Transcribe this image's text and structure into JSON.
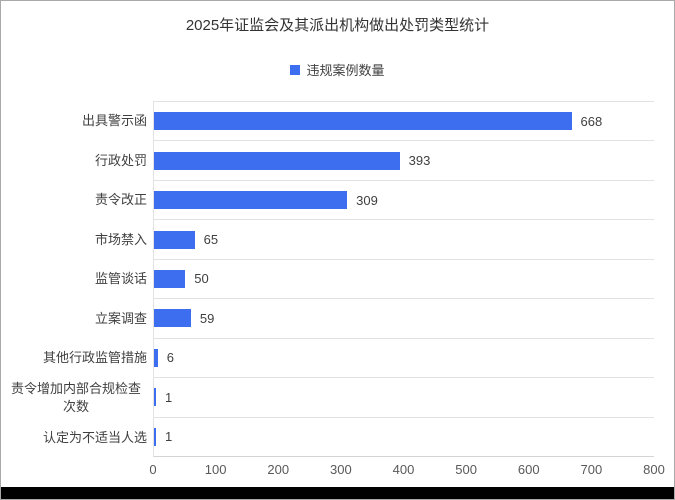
{
  "chart_data": {
    "type": "bar",
    "orientation": "horizontal",
    "title": "2025年证监会及其派出机构做出处罚类型统计",
    "series_name": "违规案例数量",
    "categories": [
      "出具警示函",
      "行政处罚",
      "责令改正",
      "市场禁入",
      "监管谈话",
      "立案调查",
      "其他行政监管措施",
      "责令增加内部合规检查次数",
      "认定为不适当人选"
    ],
    "values": [
      668,
      393,
      309,
      65,
      50,
      59,
      6,
      1,
      1
    ],
    "value_labels": [
      "668",
      "393",
      "309",
      "65",
      "50",
      "59",
      "6",
      "1",
      "1"
    ],
    "xlabel": "",
    "ylabel": "",
    "xlim": [
      0,
      800
    ],
    "x_ticks": [
      0,
      100,
      200,
      300,
      400,
      500,
      600,
      700,
      800
    ],
    "grid": "horizontal-row-separators-only",
    "legend_position": "top-center",
    "colors": {
      "bar": "#3E6EF0",
      "title": "#333333",
      "label": "#404040",
      "tick": "#595959",
      "grid": "#E2E2E2",
      "frame_border": "#A9A9A9",
      "bottom_strip": "#000000"
    }
  }
}
